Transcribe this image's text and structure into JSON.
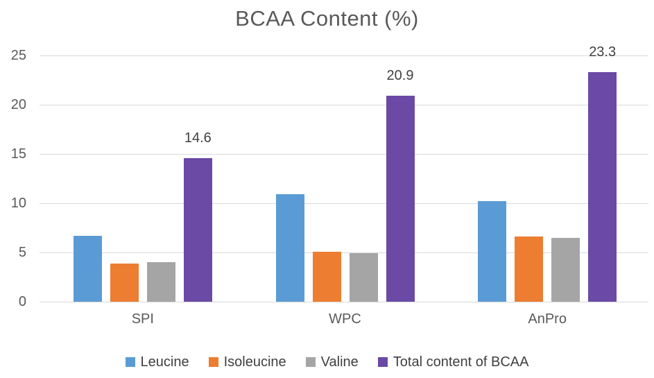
{
  "chart_data": {
    "type": "bar",
    "title": "BCAA Content (%)",
    "categories": [
      "SPI",
      "WPC",
      "AnPro"
    ],
    "series": [
      {
        "name": "Leucine",
        "color": "#5b9bd5",
        "values": [
          6.7,
          10.9,
          10.2
        ]
      },
      {
        "name": "Isoleucine",
        "color": "#ed7d31",
        "values": [
          3.9,
          5.1,
          6.6
        ]
      },
      {
        "name": "Valine",
        "color": "#a5a5a5",
        "values": [
          4.0,
          4.9,
          6.5
        ]
      },
      {
        "name": "Total content of BCAA",
        "color": "#6a4aa5",
        "values": [
          14.6,
          20.9,
          23.3
        ],
        "data_labels": [
          "14.6",
          "20.9",
          "23.3"
        ]
      }
    ],
    "xlabel": "",
    "ylabel": "",
    "ylim": [
      0,
      25
    ],
    "y_ticks": [
      0,
      5,
      10,
      15,
      20,
      25
    ],
    "grid": true,
    "legend_position": "bottom"
  },
  "styles": {
    "gridline_color": "#d9d9d9",
    "axis_text_color": "#595959",
    "title_color": "#595959",
    "data_label_color": "#404040",
    "legend_text_color": "#404040",
    "background_color": "#ffffff"
  }
}
